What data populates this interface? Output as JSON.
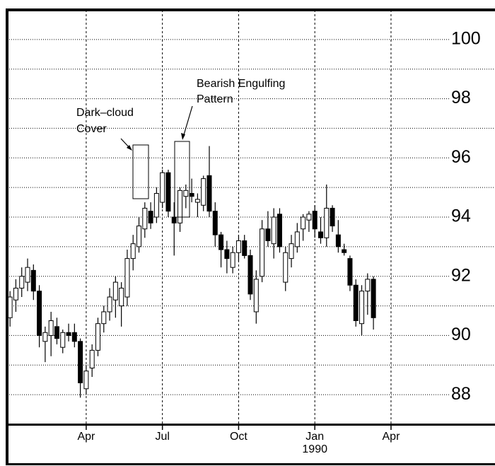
{
  "chart_data": {
    "type": "candlestick",
    "categories": [
      null,
      null,
      null,
      null,
      null,
      null,
      null,
      null,
      null,
      null,
      null,
      null,
      null,
      "Apr",
      null,
      null,
      null,
      null,
      null,
      null,
      null,
      null,
      null,
      null,
      null,
      null,
      "Jul",
      null,
      null,
      null,
      null,
      null,
      null,
      null,
      null,
      null,
      null,
      null,
      null,
      "Oct",
      null,
      null,
      null,
      null,
      null,
      null,
      null,
      null,
      null,
      null,
      null,
      null,
      "Jan",
      null,
      null,
      null,
      null,
      null,
      null,
      null,
      null,
      null,
      null,
      null,
      null,
      "Apr",
      null,
      null,
      null,
      null,
      null,
      null,
      null,
      null,
      null,
      null
    ],
    "year_label": "1990",
    "year_under": 52,
    "open": [
      90.6,
      91.2,
      91.6,
      91.8,
      92.2,
      91.5,
      89.8,
      90.0,
      90.3,
      89.6,
      90.1,
      90.1,
      89.8,
      88.2,
      88.9,
      89.5,
      90.4,
      90.8,
      91.2,
      91.0,
      91.3,
      92.6,
      93.0,
      93.6,
      94.2,
      94.0,
      94.5,
      95.5,
      94.0,
      93.8,
      94.7,
      94.8,
      94.5,
      94.4,
      95.4,
      94.2,
      93.4,
      92.9,
      92.3,
      92.8,
      93.2,
      92.7,
      90.8,
      92.0,
      93.6,
      93.1,
      94.1,
      91.8,
      92.6,
      93.0,
      93.6,
      93.9,
      94.2,
      93.5,
      93.3,
      94.3,
      93.4,
      92.9,
      92.6,
      91.7,
      90.4,
      91.5,
      91.9,
      null,
      null,
      null,
      null,
      null,
      null,
      null,
      null,
      null,
      null,
      null,
      null,
      null
    ],
    "high": [
      91.5,
      91.9,
      92.3,
      92.6,
      92.4,
      91.7,
      90.3,
      90.8,
      90.6,
      90.2,
      90.4,
      90.4,
      89.9,
      89.0,
      89.7,
      90.6,
      91.0,
      91.6,
      92.0,
      91.8,
      92.9,
      93.4,
      94.0,
      94.5,
      94.5,
      95.0,
      95.6,
      95.6,
      94.5,
      95.0,
      95.1,
      95.3,
      94.8,
      95.4,
      96.4,
      94.5,
      93.5,
      93.2,
      93.0,
      93.4,
      93.4,
      92.9,
      92.2,
      93.9,
      94.2,
      94.3,
      94.3,
      93.0,
      93.4,
      93.8,
      94.1,
      94.2,
      94.4,
      94.0,
      95.1,
      94.4,
      93.9,
      93.1,
      92.7,
      91.9,
      91.7,
      92.1,
      92.0,
      null,
      null,
      null,
      null,
      null,
      null,
      null,
      null,
      null,
      null,
      null,
      null,
      null
    ],
    "low": [
      90.3,
      90.8,
      91.3,
      91.5,
      91.2,
      89.6,
      89.1,
      89.3,
      89.7,
      89.4,
      89.8,
      89.6,
      87.9,
      88.0,
      88.6,
      89.3,
      90.1,
      90.5,
      90.6,
      90.3,
      91.0,
      92.2,
      92.8,
      93.3,
      93.6,
      93.8,
      94.3,
      94.0,
      92.7,
      93.5,
      94.3,
      94.5,
      94.0,
      94.2,
      94.0,
      93.0,
      92.3,
      92.1,
      92.1,
      92.5,
      92.6,
      91.2,
      90.4,
      91.8,
      93.0,
      92.6,
      92.8,
      91.5,
      92.3,
      92.8,
      93.2,
      93.5,
      93.3,
      93.1,
      93.0,
      93.5,
      92.8,
      92.7,
      91.5,
      90.3,
      90.0,
      90.7,
      90.2,
      null,
      null,
      null,
      null,
      null,
      null,
      null,
      null,
      null,
      null,
      null,
      null,
      null
    ],
    "close": [
      91.3,
      91.6,
      92.0,
      92.3,
      91.5,
      90.0,
      90.1,
      90.5,
      89.9,
      90.1,
      90.0,
      89.8,
      88.4,
      88.8,
      89.5,
      90.4,
      90.8,
      91.3,
      91.8,
      91.6,
      92.6,
      93.1,
      93.7,
      94.3,
      93.8,
      94.8,
      95.5,
      94.2,
      93.8,
      94.9,
      94.9,
      94.7,
      94.6,
      95.3,
      94.2,
      93.4,
      92.9,
      92.6,
      92.8,
      93.2,
      92.7,
      91.4,
      91.9,
      93.6,
      93.2,
      94.0,
      93.0,
      92.8,
      93.1,
      93.5,
      94.0,
      94.1,
      93.6,
      93.3,
      94.3,
      93.7,
      93.0,
      92.8,
      91.7,
      90.5,
      91.5,
      91.9,
      90.6,
      null,
      null,
      null,
      null,
      null,
      null,
      null,
      null,
      null,
      null,
      null,
      null,
      null
    ],
    "up_color": "#ffffff",
    "down_color": "#000000",
    "ylim": [
      87,
      101
    ],
    "yticks": [
      88,
      90,
      92,
      94,
      96,
      98,
      100
    ],
    "y_minor_ticks": [
      87,
      89,
      91,
      93,
      95,
      97,
      99,
      101
    ],
    "grid": true,
    "annotations": [
      {
        "lines": [
          "Dark–cloud",
          "Cover"
        ]
      },
      {
        "lines": [
          "Bearish Engulfing",
          "Pattern"
        ]
      }
    ]
  }
}
